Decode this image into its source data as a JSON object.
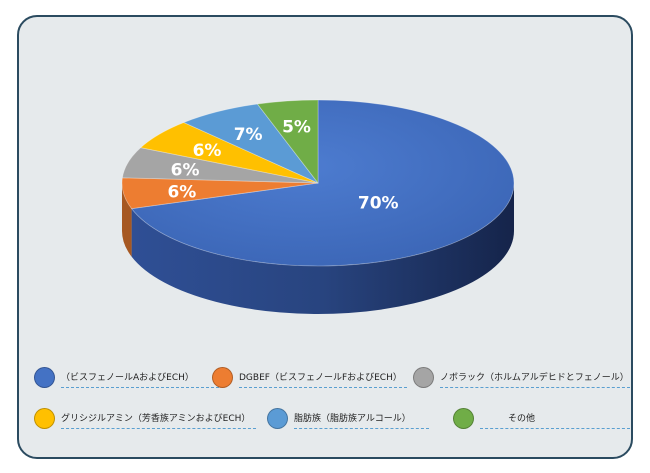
{
  "chart_data": {
    "type": "pie",
    "title": "",
    "categories": [
      "（ビスフェノールAおよびECH）",
      "DGBEF（ビスフェノールFおよびECH）",
      "ノボラック（ホルムアルデヒドとフェノール）",
      "グリシジルアミン（芳香族アミンおよびECH）",
      "脂肪族（脂肪族アルコール）",
      "その他"
    ],
    "values": [
      70,
      6,
      6,
      6,
      7,
      5
    ],
    "labels": [
      "70%",
      "6%",
      "6%",
      "6%",
      "7%",
      "5%"
    ],
    "colors": [
      "#4472c4",
      "#ed7d31",
      "#a5a5a5",
      "#ffc000",
      "#5b9bd5",
      "#70ad47"
    ],
    "legend_position": "bottom",
    "style": "3d"
  }
}
